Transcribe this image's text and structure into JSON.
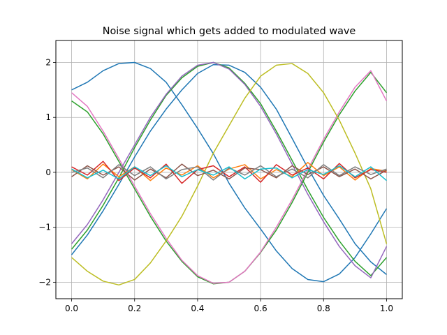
{
  "chart_data": {
    "type": "line",
    "title": "Noise signal which gets added to modulated wave",
    "xlabel": "",
    "ylabel": "",
    "xlim": [
      -0.05,
      1.05
    ],
    "ylim": [
      -2.3,
      2.4
    ],
    "xticks": [
      0.0,
      0.2,
      0.4,
      0.6,
      0.8,
      1.0
    ],
    "xtick_labels": [
      "0.0",
      "0.2",
      "0.4",
      "0.6",
      "0.8",
      "1.0"
    ],
    "yticks": [
      -2,
      -1,
      0,
      1,
      2
    ],
    "ytick_labels": [
      "−2",
      "−1",
      "0",
      "1",
      "2"
    ],
    "grid": true,
    "legend": "none",
    "series_sampling": {
      "x_start": 0.0,
      "x_end": 1.0,
      "points": 21
    },
    "series": [
      {
        "color": "#1f77b4",
        "values": [
          1.5,
          1.64,
          1.85,
          1.98,
          2.0,
          1.89,
          1.64,
          1.23,
          0.8,
          0.34,
          -0.2,
          -0.65,
          -1.03,
          -1.43,
          -1.75,
          -1.95,
          -1.99,
          -1.85,
          -1.55,
          -1.12,
          -0.66
        ]
      },
      {
        "color": "#1f77b4",
        "values": [
          -1.5,
          -1.14,
          -0.7,
          -0.22,
          0.28,
          0.75,
          1.15,
          1.5,
          1.8,
          1.96,
          1.95,
          1.82,
          1.55,
          1.15,
          0.62,
          0.08,
          -0.42,
          -0.85,
          -1.3,
          -1.63,
          -1.86
        ]
      },
      {
        "color": "#2ca02c",
        "values": [
          1.3,
          1.1,
          0.7,
          0.2,
          -0.3,
          -0.8,
          -1.25,
          -1.62,
          -1.9,
          -2.03,
          -2.0,
          -1.8,
          -1.46,
          -1.05,
          -0.55,
          0.0,
          0.55,
          1.05,
          1.48,
          1.82,
          1.45
        ]
      },
      {
        "color": "#2ca02c",
        "values": [
          -1.4,
          -1.05,
          -0.6,
          -0.1,
          0.45,
          0.95,
          1.4,
          1.72,
          1.93,
          2.0,
          1.9,
          1.62,
          1.25,
          0.75,
          0.22,
          -0.32,
          -0.82,
          -1.25,
          -1.62,
          -1.88,
          -1.55
        ]
      },
      {
        "color": "#e377c2",
        "values": [
          1.45,
          1.2,
          0.75,
          0.25,
          -0.25,
          -0.75,
          -1.2,
          -1.6,
          -1.88,
          -2.02,
          -2.0,
          -1.8,
          -1.45,
          -1.0,
          -0.5,
          0.05,
          0.6,
          1.1,
          1.55,
          1.85,
          1.3
        ]
      },
      {
        "color": "#9467bd",
        "values": [
          -1.3,
          -0.95,
          -0.5,
          0.0,
          0.5,
          1.0,
          1.42,
          1.75,
          1.95,
          2.0,
          1.88,
          1.6,
          1.2,
          0.7,
          0.15,
          -0.4,
          -0.9,
          -1.35,
          -1.7,
          -1.92,
          -1.35
        ]
      },
      {
        "color": "#bcbd22",
        "values": [
          -1.55,
          -1.8,
          -1.98,
          -2.05,
          -1.95,
          -1.65,
          -1.25,
          -0.8,
          -0.25,
          0.35,
          0.85,
          1.35,
          1.75,
          1.95,
          1.98,
          1.8,
          1.45,
          0.95,
          0.35,
          -0.3,
          -1.3
        ]
      },
      {
        "color": "#ff7f0e",
        "values": [
          0.05,
          -0.12,
          0.15,
          -0.08,
          0.1,
          -0.15,
          0.08,
          -0.05,
          0.12,
          -0.1,
          0.06,
          0.14,
          -0.12,
          0.05,
          -0.08,
          0.18,
          -0.06,
          0.1,
          -0.14,
          0.07,
          0.02
        ]
      },
      {
        "color": "#d62728",
        "values": [
          0.1,
          -0.05,
          0.2,
          -0.15,
          0.08,
          -0.1,
          0.15,
          -0.2,
          0.05,
          0.12,
          -0.08,
          0.1,
          -0.18,
          0.14,
          -0.05,
          0.08,
          -0.12,
          0.16,
          -0.1,
          0.05,
          0.0
        ]
      },
      {
        "color": "#8c564b",
        "values": [
          -0.08,
          0.12,
          -0.05,
          0.1,
          -0.14,
          0.06,
          -0.1,
          0.15,
          -0.06,
          0.04,
          -0.12,
          0.08,
          0.05,
          -0.1,
          0.12,
          -0.04,
          0.1,
          -0.08,
          0.06,
          -0.12,
          0.04
        ]
      },
      {
        "color": "#7f7f7f",
        "values": [
          0.0,
          0.08,
          -0.1,
          0.14,
          -0.06,
          0.1,
          -0.12,
          0.05,
          0.1,
          -0.14,
          0.08,
          -0.05,
          0.12,
          -0.08,
          0.06,
          -0.1,
          0.14,
          -0.06,
          0.1,
          -0.04,
          0.06
        ]
      },
      {
        "color": "#17becf",
        "values": [
          0.06,
          -0.1,
          0.04,
          -0.12,
          0.1,
          -0.06,
          0.12,
          -0.08,
          0.05,
          -0.05,
          0.1,
          -0.12,
          0.06,
          0.08,
          -0.1,
          0.05,
          -0.04,
          0.12,
          -0.08,
          0.1,
          -0.15
        ]
      }
    ]
  }
}
